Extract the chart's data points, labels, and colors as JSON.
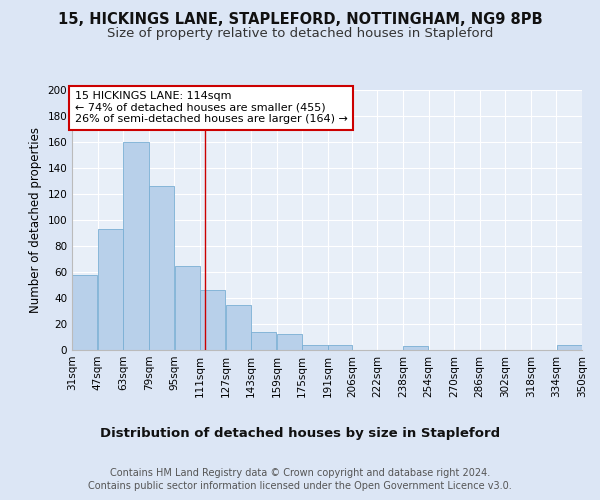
{
  "title1": "15, HICKINGS LANE, STAPLEFORD, NOTTINGHAM, NG9 8PB",
  "title2": "Size of property relative to detached houses in Stapleford",
  "xlabel": "Distribution of detached houses by size in Stapleford",
  "ylabel": "Number of detached properties",
  "footer1": "Contains HM Land Registry data © Crown copyright and database right 2024.",
  "footer2": "Contains public sector information licensed under the Open Government Licence v3.0.",
  "annotation_line1": "15 HICKINGS LANE: 114sqm",
  "annotation_line2": "← 74% of detached houses are smaller (455)",
  "annotation_line3": "26% of semi-detached houses are larger (164) →",
  "bar_edges": [
    31,
    47,
    63,
    79,
    95,
    111,
    127,
    143,
    159,
    175,
    191,
    206,
    222,
    238,
    254,
    270,
    286,
    302,
    318,
    334,
    350
  ],
  "bar_values": [
    58,
    93,
    160,
    126,
    65,
    46,
    35,
    14,
    12,
    4,
    4,
    0,
    0,
    3,
    0,
    0,
    0,
    0,
    0,
    4
  ],
  "bar_color": "#b8d0ea",
  "bar_edge_color": "#7aafd4",
  "vline_color": "#cc0000",
  "vline_x": 114,
  "ylim": [
    0,
    200
  ],
  "yticks": [
    0,
    20,
    40,
    60,
    80,
    100,
    120,
    140,
    160,
    180,
    200
  ],
  "bg_color": "#dce6f5",
  "axes_bg_color": "#e8eff8",
  "grid_color": "#ffffff",
  "annotation_box_color": "#ffffff",
  "annotation_box_edge": "#cc0000",
  "title1_fontsize": 10.5,
  "title2_fontsize": 9.5,
  "xlabel_fontsize": 9.5,
  "ylabel_fontsize": 8.5,
  "tick_fontsize": 7.5,
  "annotation_fontsize": 8,
  "footer_fontsize": 7
}
